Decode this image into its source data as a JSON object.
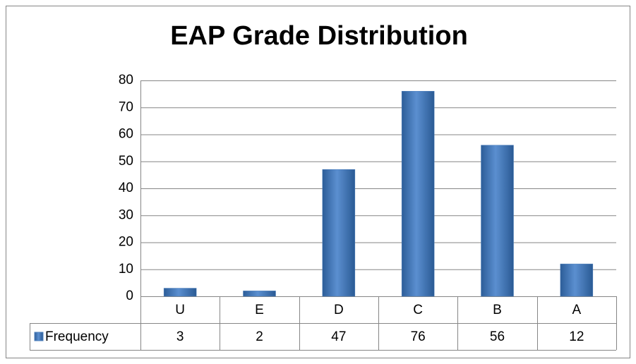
{
  "chart_data": {
    "type": "bar",
    "title": "EAP Grade Distribution",
    "categories": [
      "U",
      "E",
      "D",
      "C",
      "B",
      "A"
    ],
    "series": [
      {
        "name": "Frequency",
        "color": "#4f81bd",
        "values": [
          3,
          2,
          47,
          76,
          56,
          12
        ]
      }
    ],
    "ylim": [
      0,
      80
    ],
    "yticks": [
      0,
      10,
      20,
      30,
      40,
      50,
      60,
      70,
      80
    ],
    "grid": true
  }
}
